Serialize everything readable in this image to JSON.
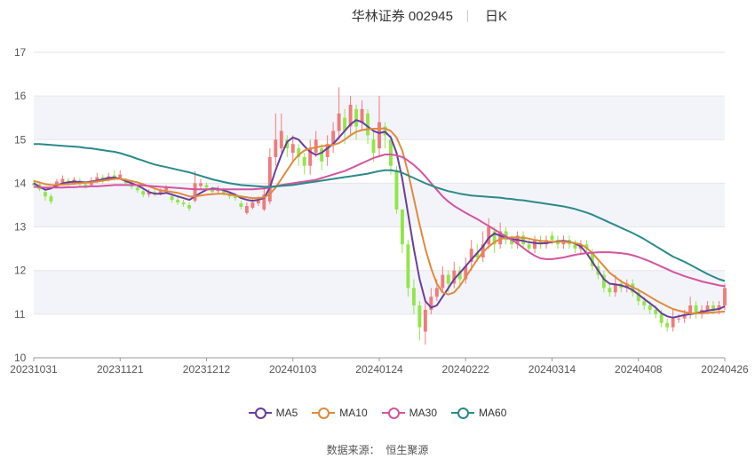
{
  "header": {
    "title": "华林证券 002945",
    "period": "日K"
  },
  "source": {
    "label": "数据来源：",
    "name": "恒生聚源"
  },
  "colors": {
    "up": "#f07b7b",
    "down": "#91e64a",
    "MA5": "#6a3d9a",
    "MA10": "#e08a3c",
    "MA30": "#d4549e",
    "MA60": "#2a8a8a",
    "grid": "#e6e6e6",
    "band": "#f3f4fa"
  },
  "chart_data": {
    "type": "candlestick",
    "ylim": [
      10,
      17
    ],
    "yticks": [
      10,
      11,
      12,
      13,
      14,
      15,
      16,
      17
    ],
    "grid": true,
    "legend_position": "bottom-center",
    "x_tick_labels": [
      "20231031",
      "20231121",
      "20231212",
      "20240103",
      "20240124",
      "20240222",
      "20240314",
      "20240408",
      "20240426"
    ],
    "x_tick_index": [
      0,
      15,
      30,
      45,
      60,
      75,
      90,
      105,
      120
    ],
    "candles": [
      [
        14.0,
        13.96,
        14.08,
        13.9
      ],
      [
        13.98,
        13.86,
        14.02,
        13.82
      ],
      [
        13.8,
        13.7,
        13.86,
        13.6
      ],
      [
        13.7,
        13.58,
        13.76,
        13.52
      ],
      [
        13.92,
        14.04,
        14.1,
        13.88
      ],
      [
        14.02,
        14.1,
        14.18,
        13.98
      ],
      [
        14.06,
        14.0,
        14.12,
        13.94
      ],
      [
        14.0,
        14.08,
        14.14,
        13.96
      ],
      [
        14.06,
        13.98,
        14.12,
        13.92
      ],
      [
        13.98,
        13.94,
        14.04,
        13.88
      ],
      [
        13.96,
        14.06,
        14.14,
        13.92
      ],
      [
        14.04,
        14.14,
        14.24,
        14.0
      ],
      [
        14.14,
        14.06,
        14.2,
        14.0
      ],
      [
        14.1,
        14.16,
        14.24,
        14.04
      ],
      [
        14.18,
        14.12,
        14.3,
        14.06
      ],
      [
        14.12,
        14.2,
        14.3,
        14.08
      ],
      [
        14.06,
        14.0,
        14.12,
        13.94
      ],
      [
        13.98,
        13.92,
        14.04,
        13.86
      ],
      [
        13.9,
        13.84,
        13.96,
        13.78
      ],
      [
        13.82,
        13.74,
        13.9,
        13.68
      ],
      [
        13.74,
        13.8,
        13.86,
        13.68
      ],
      [
        13.8,
        13.76,
        13.86,
        13.7
      ],
      [
        13.76,
        13.82,
        13.88,
        13.72
      ],
      [
        13.84,
        13.9,
        13.96,
        13.8
      ],
      [
        13.7,
        13.62,
        13.76,
        13.56
      ],
      [
        13.62,
        13.56,
        13.68,
        13.5
      ],
      [
        13.56,
        13.52,
        13.62,
        13.46
      ],
      [
        13.5,
        13.42,
        13.56,
        13.36
      ],
      [
        13.6,
        14.0,
        14.28,
        13.56
      ],
      [
        13.94,
        14.0,
        14.1,
        13.86
      ],
      [
        13.96,
        13.9,
        14.02,
        13.84
      ],
      [
        13.86,
        13.8,
        13.92,
        13.74
      ],
      [
        13.82,
        13.88,
        13.94,
        13.76
      ],
      [
        13.84,
        13.78,
        13.9,
        13.72
      ],
      [
        13.76,
        13.7,
        13.82,
        13.64
      ],
      [
        13.7,
        13.66,
        13.76,
        13.6
      ],
      [
        13.54,
        13.46,
        13.6,
        13.4
      ],
      [
        13.32,
        13.48,
        13.56,
        13.28
      ],
      [
        13.44,
        13.56,
        13.64,
        13.4
      ],
      [
        13.54,
        13.6,
        13.7,
        13.48
      ],
      [
        13.4,
        13.74,
        13.9,
        13.36
      ],
      [
        13.58,
        14.6,
        14.8,
        13.52
      ],
      [
        14.6,
        15.0,
        15.6,
        14.4
      ],
      [
        14.8,
        15.2,
        15.6,
        14.7
      ],
      [
        15.0,
        14.8,
        15.1,
        14.6
      ],
      [
        14.7,
        14.9,
        15.1,
        14.5
      ],
      [
        14.8,
        14.6,
        14.9,
        14.4
      ],
      [
        14.6,
        14.4,
        14.7,
        14.2
      ],
      [
        14.4,
        14.8,
        15.0,
        14.2
      ],
      [
        14.7,
        15.0,
        15.2,
        14.6
      ],
      [
        14.8,
        14.5,
        14.9,
        14.3
      ],
      [
        14.6,
        14.9,
        15.1,
        14.4
      ],
      [
        14.9,
        15.2,
        15.4,
        14.7
      ],
      [
        15.2,
        15.6,
        16.2,
        15.0
      ],
      [
        15.5,
        15.2,
        15.7,
        14.9
      ],
      [
        15.3,
        15.8,
        16.0,
        15.1
      ],
      [
        15.7,
        15.3,
        15.8,
        15.0
      ],
      [
        15.4,
        15.7,
        15.9,
        15.2
      ],
      [
        15.6,
        15.1,
        15.7,
        14.9
      ],
      [
        15.0,
        14.7,
        15.2,
        14.5
      ],
      [
        14.8,
        15.4,
        16.0,
        14.6
      ],
      [
        15.3,
        15.1,
        15.4,
        14.8
      ],
      [
        15.0,
        14.4,
        15.1,
        14.2
      ],
      [
        14.3,
        13.4,
        14.4,
        13.3
      ],
      [
        13.4,
        12.6,
        13.4,
        12.4
      ],
      [
        12.6,
        11.6,
        12.7,
        11.4
      ],
      [
        11.6,
        11.2,
        11.8,
        11.0
      ],
      [
        11.2,
        10.7,
        11.3,
        10.4
      ],
      [
        10.6,
        11.1,
        11.3,
        10.3
      ],
      [
        11.1,
        11.4,
        11.6,
        11.0
      ],
      [
        11.4,
        11.6,
        11.8,
        11.3
      ],
      [
        11.6,
        11.9,
        12.1,
        11.5
      ],
      [
        11.9,
        11.7,
        12.0,
        11.5
      ],
      [
        11.7,
        12.0,
        12.2,
        11.6
      ],
      [
        12.0,
        11.8,
        12.1,
        11.6
      ],
      [
        11.8,
        12.1,
        12.3,
        11.7
      ],
      [
        12.2,
        12.5,
        12.7,
        12.0
      ],
      [
        12.4,
        12.3,
        12.6,
        12.2
      ],
      [
        12.3,
        12.6,
        12.9,
        12.2
      ],
      [
        12.6,
        13.0,
        13.2,
        12.5
      ],
      [
        12.9,
        12.6,
        13.0,
        12.4
      ],
      [
        12.6,
        12.9,
        13.1,
        12.5
      ],
      [
        12.9,
        12.7,
        13.0,
        12.6
      ],
      [
        12.7,
        12.6,
        12.8,
        12.5
      ],
      [
        12.6,
        12.8,
        12.9,
        12.5
      ],
      [
        12.8,
        12.6,
        12.9,
        12.5
      ],
      [
        12.6,
        12.5,
        12.7,
        12.4
      ],
      [
        12.5,
        12.7,
        12.8,
        12.4
      ],
      [
        12.7,
        12.6,
        12.8,
        12.5
      ],
      [
        12.6,
        12.7,
        12.8,
        12.5
      ],
      [
        12.8,
        12.7,
        12.9,
        12.6
      ],
      [
        12.7,
        12.6,
        12.8,
        12.5
      ],
      [
        12.6,
        12.7,
        12.8,
        12.5
      ],
      [
        12.7,
        12.6,
        12.8,
        12.5
      ],
      [
        12.6,
        12.5,
        12.7,
        12.4
      ],
      [
        12.5,
        12.6,
        12.7,
        12.4
      ],
      [
        12.6,
        12.5,
        12.7,
        12.4
      ],
      [
        12.4,
        12.1,
        12.5,
        12.0
      ],
      [
        12.1,
        11.9,
        12.2,
        11.8
      ],
      [
        11.9,
        11.6,
        12.0,
        11.5
      ],
      [
        11.6,
        11.5,
        11.7,
        11.4
      ],
      [
        11.5,
        11.7,
        11.9,
        11.4
      ],
      [
        11.7,
        11.6,
        11.8,
        11.5
      ],
      [
        11.6,
        11.7,
        11.8,
        11.5
      ],
      [
        11.7,
        11.5,
        11.8,
        11.4
      ],
      [
        11.5,
        11.3,
        11.6,
        11.2
      ],
      [
        11.3,
        11.2,
        11.4,
        11.1
      ],
      [
        11.2,
        11.1,
        11.3,
        11.0
      ],
      [
        11.1,
        11.0,
        11.2,
        10.9
      ],
      [
        11.0,
        10.8,
        11.1,
        10.7
      ],
      [
        10.8,
        10.7,
        10.9,
        10.6
      ],
      [
        10.7,
        10.9,
        11.1,
        10.6
      ],
      [
        10.9,
        10.9,
        11.0,
        10.8
      ],
      [
        10.9,
        11.0,
        11.1,
        10.8
      ],
      [
        11.0,
        11.2,
        11.4,
        10.9
      ],
      [
        11.2,
        11.0,
        11.3,
        10.9
      ],
      [
        11.0,
        11.1,
        11.2,
        10.9
      ],
      [
        11.1,
        11.2,
        11.3,
        11.0
      ],
      [
        11.2,
        11.1,
        11.3,
        11.0
      ],
      [
        11.1,
        11.2,
        11.3,
        11.0
      ],
      [
        11.2,
        11.6,
        11.7,
        11.1
      ]
    ],
    "series": [
      {
        "name": "MA5",
        "color": "#6a3d9a",
        "values": [
          14.0,
          13.92,
          13.85,
          13.88,
          13.95,
          14.0,
          14.02,
          14.04,
          14.03,
          14.02,
          14.04,
          14.06,
          14.09,
          14.12,
          14.13,
          14.1,
          14.05,
          14.0,
          13.95,
          13.88,
          13.8,
          13.76,
          13.76,
          13.78,
          13.74,
          13.7,
          13.66,
          13.62,
          13.7,
          13.78,
          13.85,
          13.88,
          13.87,
          13.84,
          13.79,
          13.74,
          13.66,
          13.62,
          13.6,
          13.62,
          13.66,
          13.9,
          14.3,
          14.65,
          14.95,
          15.05,
          15.0,
          14.85,
          14.72,
          14.65,
          14.7,
          14.8,
          14.9,
          15.05,
          15.2,
          15.35,
          15.45,
          15.4,
          15.3,
          15.2,
          15.15,
          15.18,
          15.05,
          14.7,
          14.1,
          13.3,
          12.5,
          11.8,
          11.3,
          11.15,
          11.2,
          11.4,
          11.6,
          11.8,
          11.95,
          12.1,
          12.25,
          12.4,
          12.55,
          12.75,
          12.85,
          12.8,
          12.75,
          12.72,
          12.7,
          12.68,
          12.65,
          12.63,
          12.62,
          12.63,
          12.65,
          12.67,
          12.68,
          12.66,
          12.62,
          12.55,
          12.4,
          12.2,
          12.0,
          11.8,
          11.7,
          11.68,
          11.66,
          11.62,
          11.55,
          11.45,
          11.35,
          11.25,
          11.15,
          11.02,
          10.95,
          10.92,
          10.95,
          10.98,
          11.0,
          11.02,
          11.05,
          11.08,
          11.1,
          11.12,
          11.18
        ]
      },
      {
        "name": "MA10",
        "color": "#e08a3c",
        "values": [
          14.05,
          14.02,
          13.98,
          13.96,
          13.96,
          13.97,
          13.98,
          13.99,
          14.0,
          14.01,
          14.02,
          14.04,
          14.06,
          14.08,
          14.1,
          14.1,
          14.08,
          14.05,
          14.02,
          13.98,
          13.93,
          13.88,
          13.84,
          13.82,
          13.8,
          13.78,
          13.74,
          13.7,
          13.7,
          13.72,
          13.74,
          13.75,
          13.76,
          13.76,
          13.74,
          13.72,
          13.7,
          13.68,
          13.66,
          13.66,
          13.68,
          13.75,
          13.9,
          14.1,
          14.3,
          14.5,
          14.65,
          14.75,
          14.8,
          14.82,
          14.85,
          14.87,
          14.88,
          14.92,
          15.0,
          15.1,
          15.18,
          15.22,
          15.24,
          15.25,
          15.25,
          15.26,
          15.2,
          15.05,
          14.75,
          14.25,
          13.65,
          13.05,
          12.5,
          12.05,
          11.7,
          11.5,
          11.45,
          11.5,
          11.65,
          11.85,
          12.05,
          12.25,
          12.42,
          12.55,
          12.65,
          12.72,
          12.75,
          12.76,
          12.76,
          12.75,
          12.73,
          12.7,
          12.68,
          12.67,
          12.66,
          12.66,
          12.66,
          12.65,
          12.63,
          12.6,
          12.52,
          12.4,
          12.25,
          12.1,
          11.95,
          11.85,
          11.75,
          11.68,
          11.62,
          11.55,
          11.48,
          11.4,
          11.32,
          11.25,
          11.18,
          11.12,
          11.08,
          11.05,
          11.02,
          11.02,
          11.02,
          11.03,
          11.04,
          11.05,
          11.06
        ]
      },
      {
        "name": "MA30",
        "color": "#d4549e",
        "values": [
          13.92,
          13.91,
          13.9,
          13.9,
          13.9,
          13.9,
          13.91,
          13.91,
          13.92,
          13.92,
          13.93,
          13.93,
          13.94,
          13.95,
          13.96,
          13.96,
          13.96,
          13.96,
          13.96,
          13.95,
          13.94,
          13.93,
          13.92,
          13.91,
          13.9,
          13.89,
          13.88,
          13.87,
          13.86,
          13.86,
          13.86,
          13.86,
          13.86,
          13.86,
          13.86,
          13.86,
          13.86,
          13.86,
          13.86,
          13.87,
          13.88,
          13.9,
          13.93,
          13.96,
          13.98,
          14.0,
          14.02,
          14.04,
          14.06,
          14.08,
          14.12,
          14.16,
          14.2,
          14.24,
          14.28,
          14.34,
          14.4,
          14.46,
          14.52,
          14.58,
          14.62,
          14.66,
          14.66,
          14.64,
          14.6,
          14.52,
          14.42,
          14.3,
          14.16,
          14.0,
          13.85,
          13.7,
          13.58,
          13.48,
          13.4,
          13.32,
          13.25,
          13.18,
          13.1,
          13.02,
          12.94,
          12.86,
          12.78,
          12.7,
          12.62,
          12.52,
          12.42,
          12.34,
          12.28,
          12.26,
          12.26,
          12.28,
          12.3,
          12.33,
          12.36,
          12.38,
          12.4,
          12.41,
          12.42,
          12.42,
          12.42,
          12.41,
          12.4,
          12.38,
          12.35,
          12.31,
          12.26,
          12.21,
          12.15,
          12.09,
          12.03,
          11.97,
          11.92,
          11.87,
          11.83,
          11.79,
          11.75,
          11.72,
          11.69,
          11.66,
          11.64
        ]
      },
      {
        "name": "MA60",
        "color": "#2a8a8a",
        "values": [
          14.9,
          14.9,
          14.89,
          14.88,
          14.87,
          14.86,
          14.85,
          14.84,
          14.83,
          14.81,
          14.8,
          14.78,
          14.76,
          14.74,
          14.72,
          14.69,
          14.65,
          14.61,
          14.56,
          14.52,
          14.47,
          14.43,
          14.4,
          14.37,
          14.34,
          14.31,
          14.28,
          14.25,
          14.21,
          14.17,
          14.13,
          14.09,
          14.06,
          14.03,
          14.0,
          13.98,
          13.96,
          13.95,
          13.94,
          13.93,
          13.92,
          13.92,
          13.93,
          13.94,
          13.95,
          13.96,
          13.98,
          14.0,
          14.02,
          14.04,
          14.06,
          14.08,
          14.1,
          14.12,
          14.14,
          14.16,
          14.18,
          14.2,
          14.22,
          14.25,
          14.28,
          14.3,
          14.3,
          14.28,
          14.24,
          14.18,
          14.12,
          14.06,
          14.0,
          13.95,
          13.9,
          13.86,
          13.82,
          13.79,
          13.76,
          13.74,
          13.72,
          13.71,
          13.7,
          13.69,
          13.68,
          13.67,
          13.65,
          13.64,
          13.62,
          13.61,
          13.59,
          13.57,
          13.55,
          13.53,
          13.51,
          13.49,
          13.47,
          13.44,
          13.41,
          13.37,
          13.33,
          13.28,
          13.22,
          13.16,
          13.1,
          13.04,
          12.98,
          12.92,
          12.86,
          12.79,
          12.72,
          12.64,
          12.56,
          12.48,
          12.4,
          12.32,
          12.26,
          12.2,
          12.13,
          12.06,
          11.99,
          11.92,
          11.86,
          11.8,
          11.76
        ]
      }
    ]
  }
}
